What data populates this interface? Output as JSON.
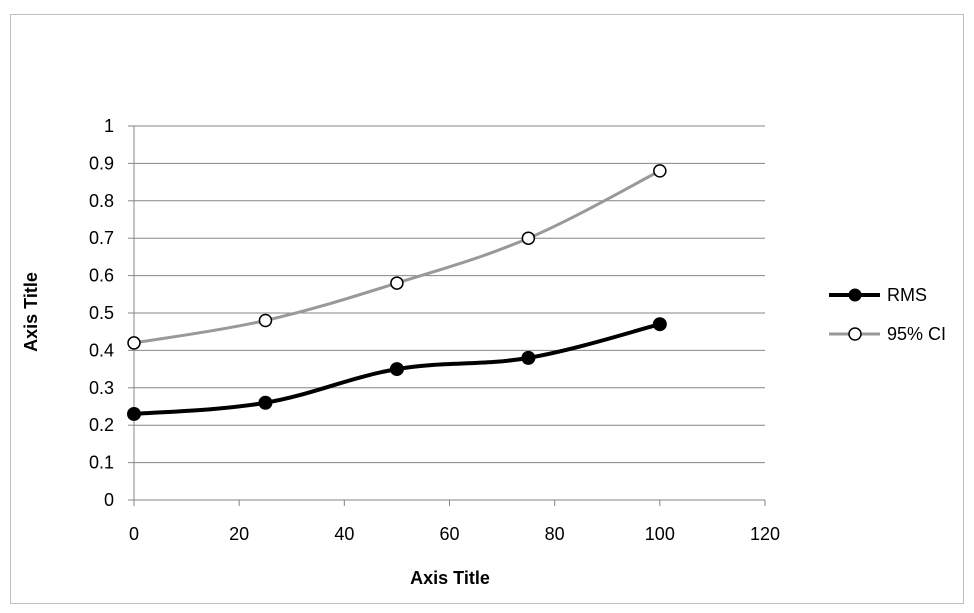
{
  "chart_data": {
    "type": "line",
    "title": "",
    "xlabel": "Axis Title",
    "ylabel": "Axis Title",
    "xlim": [
      0,
      120
    ],
    "ylim": [
      0,
      1
    ],
    "x_ticks": [
      "0",
      "20",
      "40",
      "60",
      "80",
      "100",
      "120"
    ],
    "y_ticks": [
      "0",
      "0.1",
      "0.2",
      "0.3",
      "0.4",
      "0.5",
      "0.6",
      "0.7",
      "0.8",
      "0.9",
      "1"
    ],
    "grid": "horizontal",
    "legend_position": "right",
    "series": [
      {
        "name": "RMS",
        "color": "#000000",
        "marker": "filled-circle",
        "x": [
          0,
          25,
          50,
          75,
          100
        ],
        "y": [
          0.23,
          0.26,
          0.35,
          0.38,
          0.47
        ]
      },
      {
        "name": "95% CI",
        "color": "#999999",
        "marker": "open-circle",
        "x": [
          0,
          25,
          50,
          75,
          100
        ],
        "y": [
          0.42,
          0.48,
          0.58,
          0.7,
          0.88
        ]
      }
    ]
  }
}
